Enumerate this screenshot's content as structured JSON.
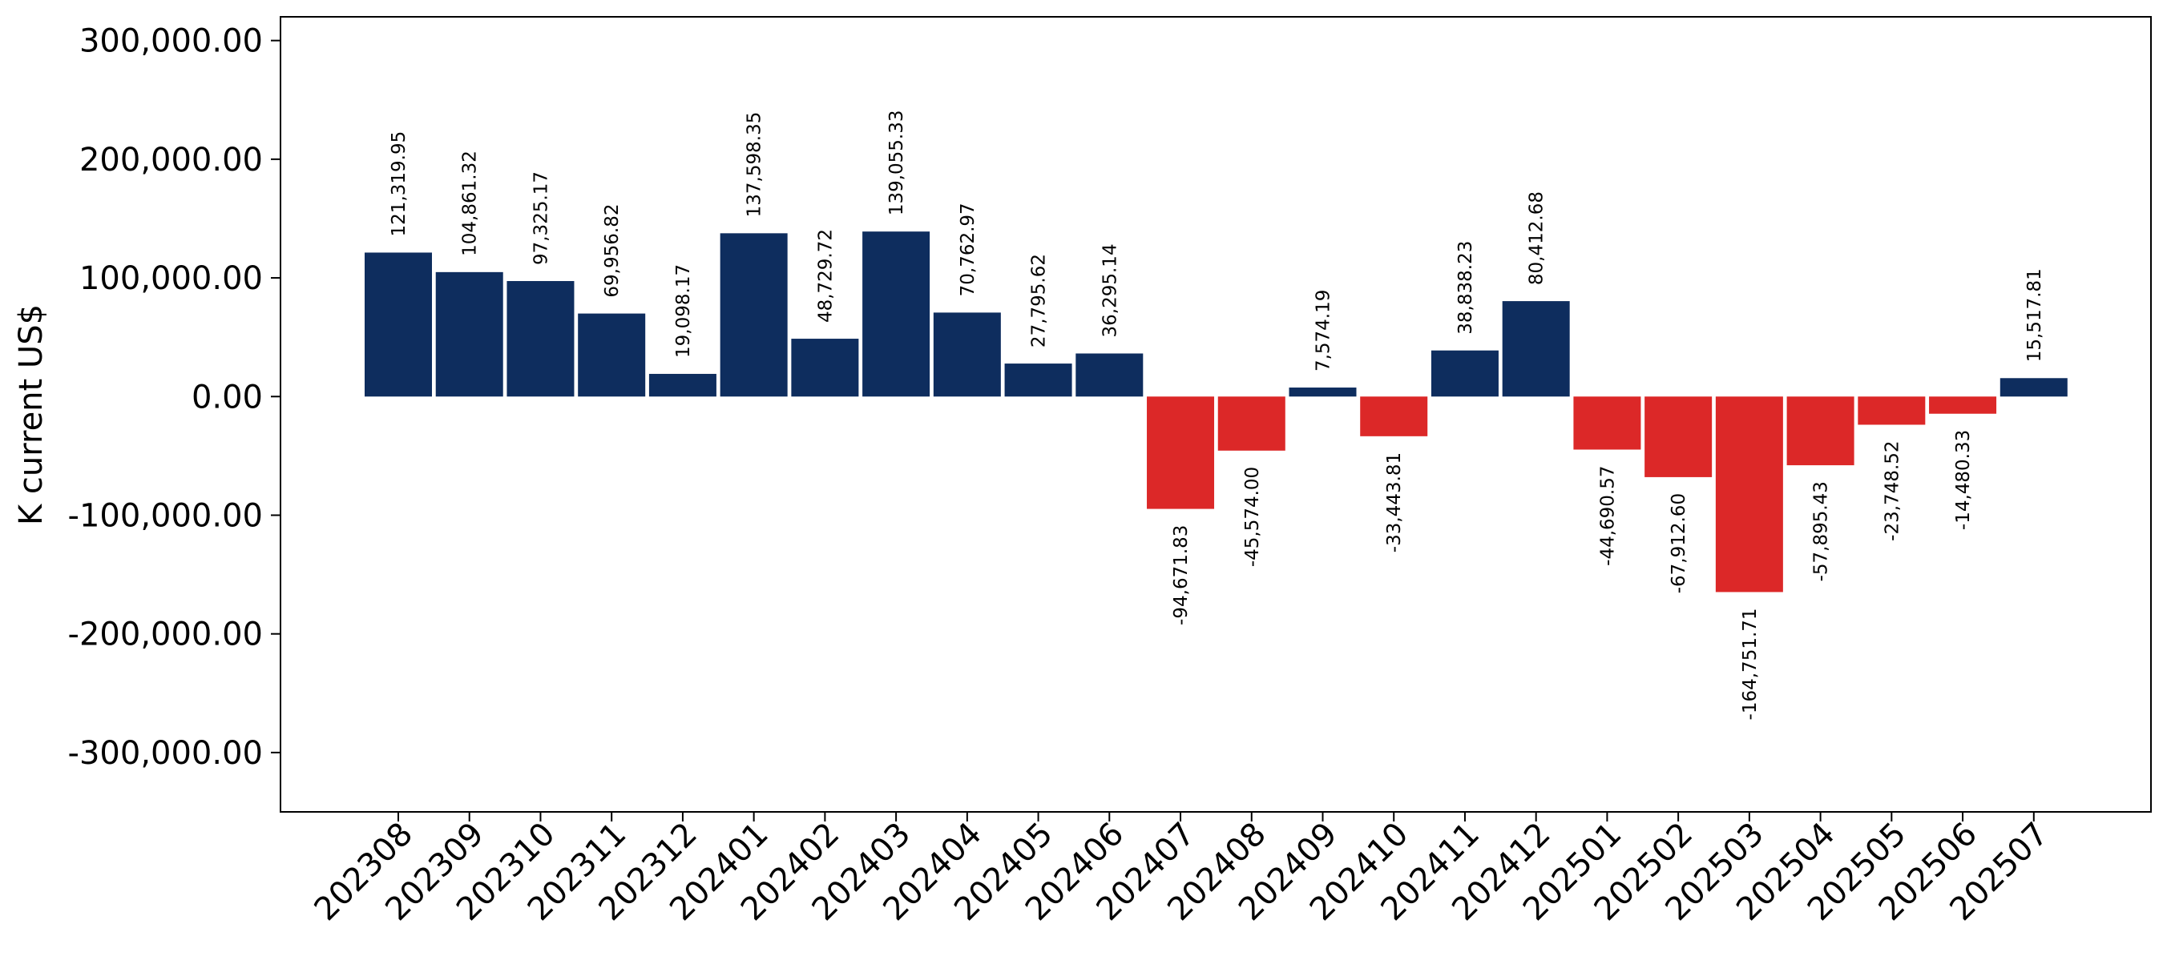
{
  "chart_data": {
    "type": "bar",
    "title": "",
    "xlabel": "",
    "ylabel": "K current US$",
    "ylim": [
      -350000,
      320000
    ],
    "yticks": [
      -300000,
      -200000,
      -100000,
      0,
      100000,
      200000,
      300000
    ],
    "ytick_labels": [
      "-300,000.00",
      "-200,000.00",
      "-100,000.00",
      "0.00",
      "100,000.00",
      "200,000.00",
      "300,000.00"
    ],
    "grid": false,
    "colors": {
      "positive": "#0e2d5e",
      "negative": "#dc2828"
    },
    "categories": [
      "202308",
      "202309",
      "202310",
      "202311",
      "202312",
      "202401",
      "202402",
      "202403",
      "202404",
      "202405",
      "202406",
      "202407",
      "202408",
      "202409",
      "202410",
      "202411",
      "202412",
      "202501",
      "202502",
      "202503",
      "202504",
      "202505",
      "202506",
      "202507"
    ],
    "values": [
      121319.95,
      104861.32,
      97325.17,
      69956.82,
      19098.17,
      137598.35,
      48729.72,
      139055.33,
      70762.97,
      27795.62,
      36295.14,
      -94671.83,
      -45574.0,
      7574.19,
      -33443.81,
      38838.23,
      80412.68,
      -44690.57,
      -67912.6,
      -164751.71,
      -57895.43,
      -23748.52,
      -14480.33,
      15517.81
    ],
    "value_labels": [
      "121,319.95",
      "104,861.32",
      "97,325.17",
      "69,956.82",
      "19,098.17",
      "137,598.35",
      "48,729.72",
      "139,055.33",
      "70,762.97",
      "27,795.62",
      "36,295.14",
      "-94,671.83",
      "-45,574.00",
      "7,574.19",
      "-33,443.81",
      "38,838.23",
      "80,412.68",
      "-44,690.57",
      "-67,912.60",
      "-164,751.71",
      "-57,895.43",
      "-23,748.52",
      "-14,480.33",
      "15,517.81"
    ]
  }
}
